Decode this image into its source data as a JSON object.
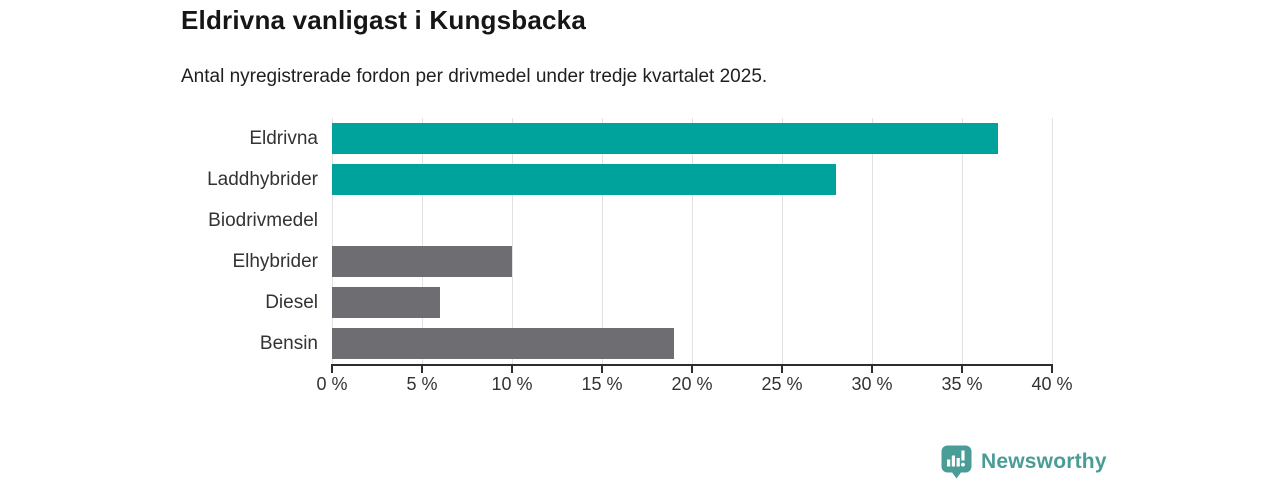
{
  "title": "Eldrivna vanligast i Kungsbacka",
  "subtitle": "Antal nyregistrerade fordon per drivmedel under tredje kvartalet 2025.",
  "chart_data": {
    "type": "bar",
    "orientation": "horizontal",
    "title": "Eldrivna vanligast i Kungsbacka",
    "subtitle": "Antal nyregistrerade fordon per drivmedel under tredje kvartalet 2025.",
    "categories": [
      "Eldrivna",
      "Laddhybrider",
      "Biodrivmedel",
      "Elhybrider",
      "Diesel",
      "Bensin"
    ],
    "values": [
      37,
      28,
      0,
      10,
      6,
      19
    ],
    "unit": "%",
    "highlighted": [
      true,
      true,
      false,
      false,
      false,
      false
    ],
    "xlim": [
      0,
      40
    ],
    "xticks": [
      0,
      5,
      10,
      15,
      20,
      25,
      30,
      35,
      40
    ],
    "xtick_suffix": " %",
    "grid": "vertical",
    "legend_position": "none"
  },
  "colors": {
    "highlight": "#00a39b",
    "neutral": "#6e6e72",
    "gridline": "#e2e2e2",
    "axis": "#2d2d2d",
    "label_text": "#333333",
    "logo": "#4a9c96"
  },
  "branding": {
    "name": "Newsworthy",
    "icon": "bar-chart-speech-bubble"
  }
}
